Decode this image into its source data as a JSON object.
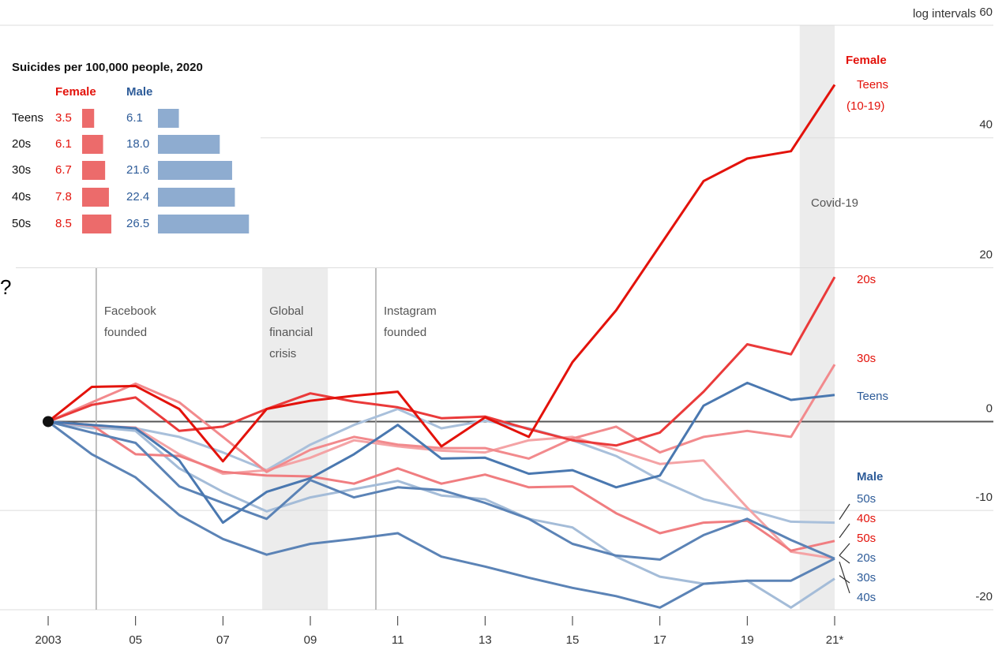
{
  "chart_data": [
    {
      "type": "line",
      "y_axis_label": "log intervals",
      "log_scale": true,
      "x": [
        2003,
        2004,
        2005,
        2006,
        2007,
        2008,
        2009,
        2010,
        2011,
        2012,
        2013,
        2014,
        2015,
        2016,
        2017,
        2018,
        2019,
        2020,
        2021
      ],
      "xlim": [
        2003,
        2021
      ],
      "xticks": [
        2003,
        {
          "value": 2005,
          "label": "05"
        },
        {
          "value": 2007,
          "label": "07"
        },
        {
          "value": 2009,
          "label": "09"
        },
        {
          "value": 2011,
          "label": "11"
        },
        {
          "value": 2013,
          "label": "13"
        },
        {
          "value": 2015,
          "label": "15"
        },
        {
          "value": 2017,
          "label": "17"
        },
        {
          "value": 2019,
          "label": "19"
        },
        {
          "value": 2021,
          "label": "21*"
        }
      ],
      "ylim": [
        -20,
        60
      ],
      "yticks": [
        60,
        40,
        20,
        0,
        -10,
        -20
      ],
      "grid": true,
      "groups": [
        "Female",
        "Male"
      ],
      "teen_age_range": "(10-19)",
      "stray_mark": "?",
      "annotations": [
        {
          "x": 2004.1,
          "label": [
            "Facebook",
            "founded"
          ]
        },
        {
          "x": 2010.5,
          "label": [
            "Instagram",
            "founded"
          ]
        }
      ],
      "bands": [
        {
          "x0": 2007.9,
          "x1": 2009.4,
          "label": [
            "Global",
            "financial",
            "crisis"
          ]
        },
        {
          "x0": 2020.2,
          "x1": 2021,
          "label": [
            "Covid-19"
          ]
        }
      ],
      "series": [
        {
          "name": "50s",
          "color": "#a9c0db",
          "values": [
            0,
            -0.8,
            -0.8,
            -1.8,
            -3.6,
            -5.6,
            -2.7,
            -0.4,
            1.5,
            -0.8,
            0.1,
            -0.8,
            -2.2,
            -4.0,
            -6.7,
            -8.8,
            -9.9,
            -11.2,
            -11.3
          ]
        },
        {
          "name": "30s",
          "color": "#a4bcd8",
          "values": [
            0,
            -0.6,
            -1.1,
            -5.4,
            -8.0,
            -10.1,
            -8.6,
            -7.7,
            -6.8,
            -8.4,
            -8.8,
            -10.9,
            -11.8,
            -14.8,
            -16.8,
            -17.5,
            -17.2,
            -19.8,
            -17.0
          ]
        },
        {
          "name": "50s",
          "color": "#f4a3a5",
          "values": [
            0,
            -0.5,
            -0.7,
            -3.8,
            -6.0,
            -5.6,
            -4.2,
            -2.2,
            -2.9,
            -3.4,
            -3.6,
            -2.2,
            -1.8,
            -3.3,
            -4.9,
            -4.5,
            -9.7,
            -14.3,
            -15.0
          ]
        },
        {
          "name": "40s",
          "color": "#f07d80",
          "values": [
            0,
            -0.4,
            -3.8,
            -4.0,
            -5.8,
            -6.2,
            -6.3,
            -7.1,
            -5.4,
            -7.1,
            -6.1,
            -7.5,
            -7.4,
            -10.3,
            -12.4,
            -11.3,
            -11.1,
            -14.2,
            -13.2
          ]
        },
        {
          "name": "30s",
          "color": "#f28a8d",
          "values": [
            0,
            2.3,
            4.6,
            2.3,
            -1.8,
            -5.8,
            -3.3,
            -1.8,
            -2.7,
            -3.1,
            -3.1,
            -4.3,
            -2.0,
            -0.6,
            -3.6,
            -1.8,
            -1.1,
            -1.8,
            7.0
          ]
        },
        {
          "name": "40s",
          "color": "#5b83b6",
          "values": [
            0,
            -3.8,
            -6.4,
            -10.5,
            -13.0,
            -14.6,
            -13.5,
            -13.0,
            -12.4,
            -14.8,
            -15.8,
            -16.9,
            -17.9,
            -18.7,
            -19.8,
            -17.5,
            -17.2,
            -17.2,
            -15.0
          ]
        },
        {
          "name": "20s",
          "color": "#5b83b6",
          "values": [
            0,
            -1.3,
            -2.5,
            -7.4,
            -9.2,
            -10.9,
            -6.7,
            -8.6,
            -7.5,
            -7.8,
            -9.2,
            -10.9,
            -13.5,
            -14.7,
            -15.1,
            -12.6,
            -10.9,
            -13.1,
            -15.0
          ]
        },
        {
          "name": "Teens",
          "color": "#4a78b0",
          "values": [
            0,
            -0.4,
            -0.8,
            -4.5,
            -11.3,
            -8.0,
            -6.5,
            -3.8,
            -0.4,
            -4.3,
            -4.2,
            -6.0,
            -5.6,
            -7.5,
            -6.2,
            1.9,
            4.7,
            2.6,
            3.2
          ]
        },
        {
          "name": "20s",
          "color": "#ea3a3a",
          "values": [
            0,
            2.0,
            2.9,
            -1.1,
            -0.6,
            1.5,
            3.4,
            2.4,
            1.7,
            0.4,
            0.6,
            -0.9,
            -2.2,
            -2.8,
            -1.3,
            3.6,
            9.6,
            8.3,
            18.7
          ]
        },
        {
          "name": "Teens",
          "color": "#e3120b",
          "values": [
            0,
            4.2,
            4.3,
            1.5,
            -4.6,
            1.5,
            2.5,
            3.1,
            3.6,
            -2.9,
            0.5,
            -1.8,
            7.3,
            14.1,
            23.2,
            33.0,
            36.6,
            37.8,
            49.1
          ]
        }
      ]
    },
    {
      "type": "bar",
      "orientation": "horizontal",
      "title": "Suicides per 100,000 people, 2020",
      "categories": [
        "Teens",
        "20s",
        "30s",
        "40s",
        "50s"
      ],
      "series": [
        {
          "name": "Female",
          "color": "#ec6b6b",
          "values": [
            3.5,
            6.1,
            6.7,
            7.8,
            8.5
          ]
        },
        {
          "name": "Male",
          "color": "#8eacd0",
          "values": [
            6.1,
            18,
            21.6,
            22.4,
            26.5
          ],
          "value_labels": [
            "6.1",
            "18.0",
            "21.6",
            "22.4",
            "26.5"
          ]
        }
      ]
    }
  ]
}
